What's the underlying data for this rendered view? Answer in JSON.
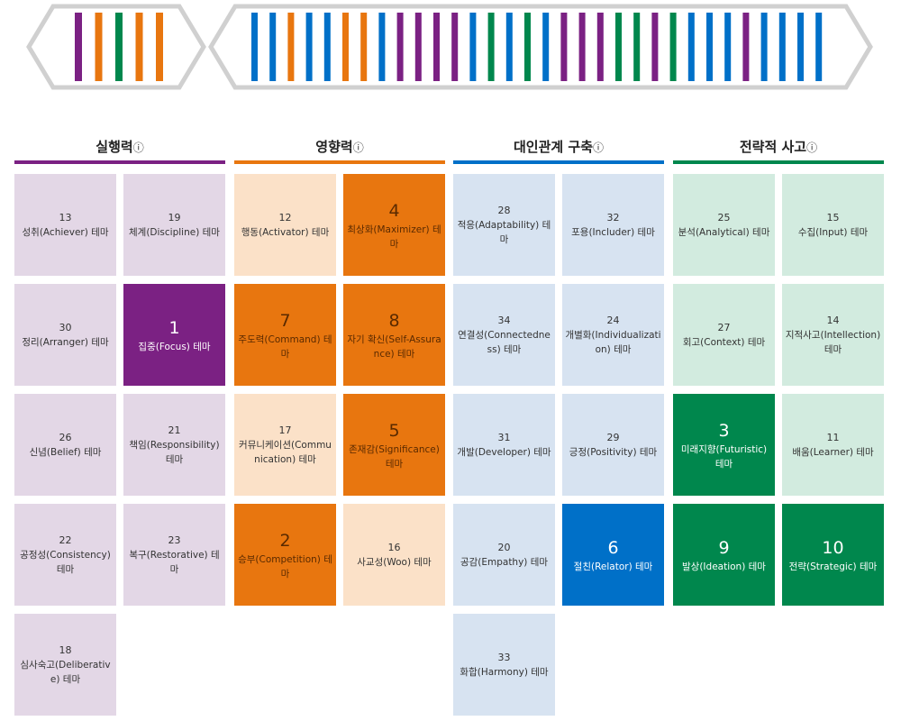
{
  "banner": {
    "left_stripes": [
      "purple",
      "orange",
      "green",
      "orange",
      "orange"
    ],
    "right_stripes": [
      "blue",
      "blue",
      "orange",
      "blue",
      "blue",
      "orange",
      "orange",
      "blue",
      "purple",
      "purple",
      "purple",
      "purple",
      "blue",
      "green",
      "blue",
      "green",
      "blue",
      "purple",
      "purple",
      "purple",
      "green",
      "green",
      "purple",
      "green",
      "blue",
      "blue",
      "blue",
      "purple",
      "blue",
      "blue",
      "blue",
      "blue"
    ]
  },
  "colors": {
    "purple": "#7b2183",
    "orange": "#e8760f",
    "blue": "#0070c8",
    "green": "#00874d",
    "purple_light": "#e3d7e6",
    "orange_light": "#fbe1c8",
    "blue_light": "#d7e3f1",
    "green_light": "#d2ebdf"
  },
  "domains": [
    {
      "key": "purple",
      "title": "실행력",
      "info": "ⓘ",
      "columns": [
        [
          {
            "rank": "13",
            "name": "성취(Achiever) 테마"
          },
          {
            "rank": "30",
            "name": "정리(Arranger) 테마"
          },
          {
            "rank": "26",
            "name": "신념(Belief) 테마"
          },
          {
            "rank": "22",
            "name": "공정성(Consistency) 테마"
          },
          {
            "rank": "18",
            "name": "심사숙고(Deliberative) 테마"
          }
        ],
        [
          {
            "rank": "19",
            "name": "체계(Discipline) 테마"
          },
          {
            "rank": "1",
            "name": "집중(Focus) 테마"
          },
          {
            "rank": "21",
            "name": "책임(Responsibility) 테마"
          },
          {
            "rank": "23",
            "name": "복구(Restorative) 테마"
          }
        ]
      ]
    },
    {
      "key": "orange",
      "title": "영향력",
      "info": "ⓘ",
      "columns": [
        [
          {
            "rank": "12",
            "name": "행동(Activator) 테마"
          },
          {
            "rank": "7",
            "name": "주도력(Command) 테마"
          },
          {
            "rank": "17",
            "name": "커뮤니케이션(Communication) 테마"
          },
          {
            "rank": "2",
            "name": "승부(Competition) 테마"
          }
        ],
        [
          {
            "rank": "4",
            "name": "최상화(Maximizer) 테마"
          },
          {
            "rank": "8",
            "name": "자기 확신(Self-Assurance) 테마"
          },
          {
            "rank": "5",
            "name": "존재감(Significance) 테마"
          },
          {
            "rank": "16",
            "name": "사교성(Woo) 테마"
          }
        ]
      ]
    },
    {
      "key": "blue",
      "title": "대인관계 구축",
      "info": "ⓘ",
      "columns": [
        [
          {
            "rank": "28",
            "name": "적응(Adaptability) 테마"
          },
          {
            "rank": "34",
            "name": "연결성(Connectedness) 테마"
          },
          {
            "rank": "31",
            "name": "개발(Developer) 테마"
          },
          {
            "rank": "20",
            "name": "공감(Empathy) 테마"
          },
          {
            "rank": "33",
            "name": "화합(Harmony) 테마"
          }
        ],
        [
          {
            "rank": "32",
            "name": "포용(Includer) 테마"
          },
          {
            "rank": "24",
            "name": "개별화(Individualization) 테마"
          },
          {
            "rank": "29",
            "name": "긍정(Positivity) 테마"
          },
          {
            "rank": "6",
            "name": "절친(Relator) 테마"
          }
        ]
      ]
    },
    {
      "key": "green",
      "title": "전략적 사고",
      "info": "ⓘ",
      "columns": [
        [
          {
            "rank": "25",
            "name": "분석(Analytical) 테마"
          },
          {
            "rank": "27",
            "name": "회고(Context) 테마"
          },
          {
            "rank": "3",
            "name": "미래지향(Futuristic) 테마"
          },
          {
            "rank": "9",
            "name": "발상(Ideation) 테마"
          }
        ],
        [
          {
            "rank": "15",
            "name": "수집(Input) 테마"
          },
          {
            "rank": "14",
            "name": "지적사고(Intellection) 테마"
          },
          {
            "rank": "11",
            "name": "배움(Learner) 테마"
          },
          {
            "rank": "10",
            "name": "전략(Strategic) 테마"
          }
        ]
      ]
    }
  ]
}
